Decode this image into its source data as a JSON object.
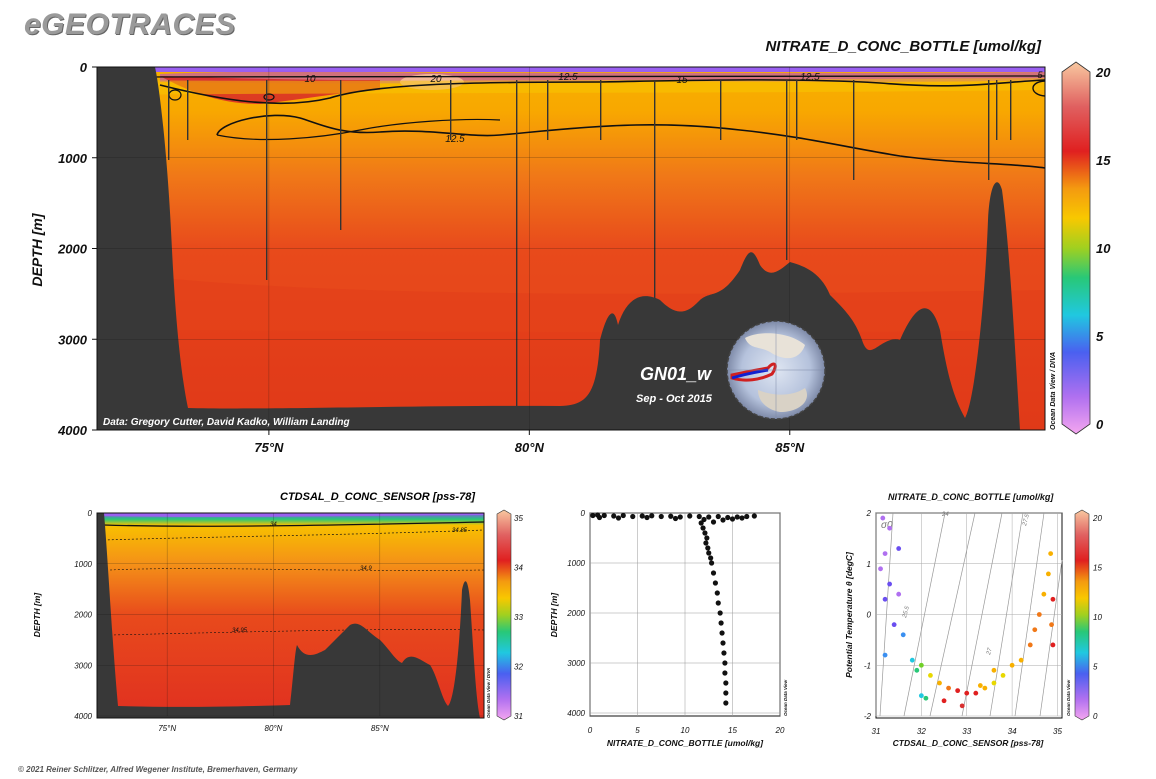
{
  "brand": "eGEOTRACES",
  "footer": "© 2021 Reiner Schlitzer, Alfred Wegener Institute, Bremerhaven, Germany",
  "colorbar_stops": [
    "#f4a6f0",
    "#b070f0",
    "#6a4ef0",
    "#3a8ff0",
    "#20c8e0",
    "#28c878",
    "#70d028",
    "#e8d800",
    "#f8b000",
    "#f07818",
    "#e02020",
    "#d83030",
    "#f0a080",
    "#f8c8a0"
  ],
  "chart_data": [
    {
      "type": "heatmap",
      "id": "main-section",
      "title": "NITRATE_D_CONC_BOTTLE [umol/kg]",
      "ylabel": "DEPTH [m]",
      "x_ticks": [
        "75°N",
        "80°N",
        "85°N"
      ],
      "x_tick_values": [
        75,
        80,
        85
      ],
      "xlim": [
        71.7,
        89.9
      ],
      "y_ticks": [
        "0",
        "1000",
        "2000",
        "3000",
        "4000"
      ],
      "ylim": [
        0,
        4000
      ],
      "colorbar_ticks": [
        "0",
        "5",
        "10",
        "15",
        "20"
      ],
      "colorbar_range": [
        0,
        20
      ],
      "contour_labels": [
        "20",
        "10",
        "15",
        "12.5",
        "12.5",
        "12.5",
        "5"
      ],
      "credit": "Data: Gregory Cutter, David Kadko, William Landing",
      "section_name": "GN01_w",
      "section_dates": "Sep - Oct 2015",
      "watermark": "Ocean Data View / DIVA"
    },
    {
      "type": "heatmap",
      "id": "salinity-section",
      "title": "CTDSAL_D_CONC_SENSOR [pss-78]",
      "ylabel": "DEPTH [m]",
      "x_ticks": [
        "75°N",
        "80°N",
        "85°N"
      ],
      "x_tick_values": [
        75,
        80,
        85
      ],
      "xlim": [
        71.7,
        89.9
      ],
      "y_ticks": [
        "0",
        "1000",
        "2000",
        "3000",
        "4000"
      ],
      "ylim": [
        0,
        4000
      ],
      "colorbar_ticks": [
        "31",
        "32",
        "33",
        "34",
        "35"
      ],
      "colorbar_range": [
        31,
        35
      ],
      "contour_labels": [
        "34",
        "34.85",
        "34.9",
        "34.95"
      ],
      "watermark": "Ocean Data View / DIVA"
    },
    {
      "type": "scatter",
      "id": "nitrate-profile",
      "xlabel": "NITRATE_D_CONC_BOTTLE [umol/kg]",
      "ylabel": "DEPTH [m]",
      "x_ticks": [
        "0",
        "5",
        "10",
        "15",
        "20"
      ],
      "xlim": [
        0,
        20
      ],
      "y_ticks": [
        "0",
        "1000",
        "2000",
        "3000",
        "4000"
      ],
      "ylim": [
        0,
        4000
      ],
      "watermark": "Ocean Data View",
      "points": [
        [
          0.3,
          50
        ],
        [
          0.8,
          40
        ],
        [
          1.5,
          50
        ],
        [
          2.5,
          60
        ],
        [
          3.5,
          50
        ],
        [
          4.5,
          70
        ],
        [
          5.5,
          60
        ],
        [
          6.5,
          55
        ],
        [
          7.5,
          70
        ],
        [
          8.5,
          65
        ],
        [
          9.5,
          80
        ],
        [
          10.5,
          60
        ],
        [
          11.5,
          70
        ],
        [
          12.5,
          80
        ],
        [
          13.5,
          70
        ],
        [
          14.5,
          90
        ],
        [
          15.5,
          80
        ],
        [
          16.5,
          70
        ],
        [
          17.3,
          60
        ],
        [
          1,
          90
        ],
        [
          3,
          100
        ],
        [
          6,
          90
        ],
        [
          9,
          110
        ],
        [
          12,
          130
        ],
        [
          13,
          180
        ],
        [
          14,
          140
        ],
        [
          15,
          120
        ],
        [
          16,
          100
        ],
        [
          11.7,
          200
        ],
        [
          11.9,
          300
        ],
        [
          12.1,
          400
        ],
        [
          12.3,
          500
        ],
        [
          12.2,
          600
        ],
        [
          12.4,
          700
        ],
        [
          12.5,
          800
        ],
        [
          12.7,
          900
        ],
        [
          12.8,
          1000
        ],
        [
          13.0,
          1200
        ],
        [
          13.2,
          1400
        ],
        [
          13.4,
          1600
        ],
        [
          13.5,
          1800
        ],
        [
          13.7,
          2000
        ],
        [
          13.8,
          2200
        ],
        [
          13.9,
          2400
        ],
        [
          14.0,
          2600
        ],
        [
          14.1,
          2800
        ],
        [
          14.2,
          3000
        ],
        [
          14.2,
          3200
        ],
        [
          14.3,
          3400
        ],
        [
          14.3,
          3600
        ],
        [
          14.3,
          3800
        ]
      ]
    },
    {
      "type": "scatter",
      "id": "ts-diagram",
      "title": "NITRATE_D_CONC_BOTTLE [umol/kg]",
      "xlabel": "CTDSAL_D_CONC_SENSOR [pss-78]",
      "ylabel": "Potential Temperature θ [degC]",
      "x_ticks": [
        "31",
        "32",
        "33",
        "34",
        "35"
      ],
      "xlim": [
        31,
        35.1
      ],
      "y_ticks": [
        "2",
        "1",
        "0",
        "-1",
        "-2"
      ],
      "y_tick_values": [
        2,
        1,
        0,
        -1,
        -2
      ],
      "ylim": [
        -2,
        2
      ],
      "colorbar_ticks": [
        "0",
        "5",
        "10",
        "15",
        "20"
      ],
      "colorbar_range": [
        0,
        20
      ],
      "isopycnal_labels": [
        "σ0",
        "24",
        "25.5",
        "27",
        "27.5"
      ],
      "watermark": "Ocean Data View",
      "points": [
        [
          31.15,
          1.9,
          2
        ],
        [
          31.3,
          1.7,
          2
        ],
        [
          31.5,
          1.3,
          3
        ],
        [
          31.2,
          1.2,
          2
        ],
        [
          31.1,
          0.9,
          2
        ],
        [
          31.3,
          0.6,
          3
        ],
        [
          31.2,
          0.3,
          3
        ],
        [
          31.4,
          -0.2,
          3
        ],
        [
          31.5,
          0.4,
          2
        ],
        [
          31.6,
          -0.4,
          5
        ],
        [
          31.2,
          -0.8,
          4
        ],
        [
          31.8,
          -0.9,
          6
        ],
        [
          31.9,
          -1.1,
          7
        ],
        [
          32.0,
          -1.0,
          9
        ],
        [
          32.2,
          -1.2,
          10
        ],
        [
          32.4,
          -1.35,
          12
        ],
        [
          32.6,
          -1.45,
          14
        ],
        [
          32.8,
          -1.5,
          15
        ],
        [
          33.0,
          -1.55,
          16
        ],
        [
          33.2,
          -1.55,
          15
        ],
        [
          33.3,
          -1.4,
          13
        ],
        [
          33.4,
          -1.45,
          12
        ],
        [
          33.6,
          -1.35,
          11
        ],
        [
          33.8,
          -1.2,
          10
        ],
        [
          34.0,
          -1.0,
          12
        ],
        [
          34.2,
          -0.9,
          13
        ],
        [
          34.4,
          -0.6,
          14
        ],
        [
          34.5,
          -0.3,
          14
        ],
        [
          34.6,
          0.0,
          14
        ],
        [
          34.7,
          0.4,
          13
        ],
        [
          34.8,
          0.8,
          12
        ],
        [
          34.85,
          1.2,
          12
        ],
        [
          34.9,
          0.3,
          15
        ],
        [
          34.87,
          -0.2,
          14
        ],
        [
          34.9,
          -0.6,
          15
        ],
        [
          32.1,
          -1.65,
          7
        ],
        [
          32.5,
          -1.7,
          16
        ],
        [
          33.6,
          -1.1,
          13
        ],
        [
          32.0,
          -1.6,
          6
        ],
        [
          32.9,
          -1.8,
          17
        ]
      ]
    }
  ]
}
